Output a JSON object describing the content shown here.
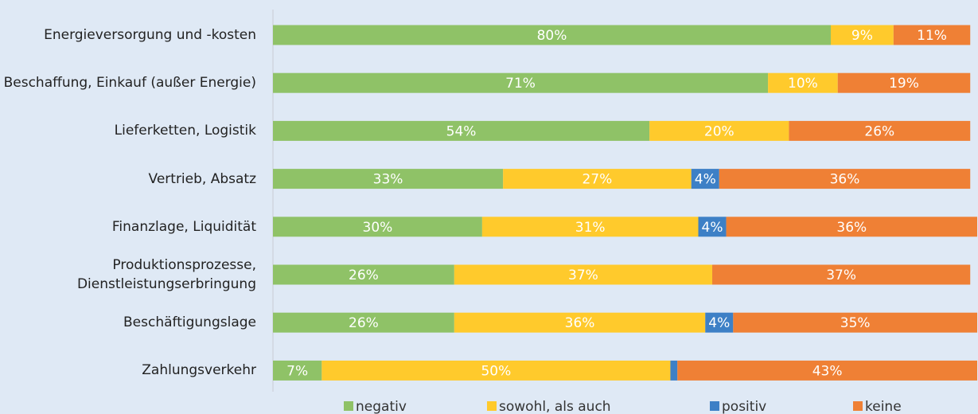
{
  "chart_data": {
    "type": "stacked-bar-horizontal",
    "categories": [
      "Energieversorgung und -kosten",
      "Beschaffung, Einkauf (außer Energie)",
      "Lieferketten, Logistik",
      "Vertrieb, Absatz",
      "Finanzlage, Liquidität",
      "Produktionsprozesse, Dienstleistungserbringung",
      "Beschäftigungslage",
      "Zahlungsverkehr"
    ],
    "series": [
      {
        "name": "negativ",
        "color": "#8fc267",
        "values": [
          80,
          71,
          54,
          33,
          30,
          26,
          26,
          7
        ],
        "value_labels": [
          "80%",
          "71%",
          "54%",
          "33%",
          "30%",
          "26%",
          "26%",
          "7%"
        ]
      },
      {
        "name": "sowohl, als auch",
        "color": "#ffca2c",
        "values": [
          9,
          10,
          20,
          27,
          31,
          37,
          36,
          50
        ],
        "value_labels": [
          "9%",
          "10%",
          "20%",
          "27%",
          "31%",
          "37%",
          "36%",
          "50%"
        ]
      },
      {
        "name": "positiv",
        "color": "#3d80c6",
        "values": [
          null,
          null,
          null,
          4,
          4,
          null,
          4,
          1
        ],
        "value_labels": [
          null,
          null,
          null,
          "4%",
          "4%",
          null,
          "4%",
          null
        ]
      },
      {
        "name": "keine",
        "color": "#ef8035",
        "values": [
          11,
          19,
          26,
          36,
          36,
          37,
          35,
          43
        ],
        "value_labels": [
          "11%",
          "19%",
          "26%",
          "36%",
          "36%",
          "37%",
          "35%",
          "43%"
        ]
      }
    ],
    "xlim": [
      0,
      101
    ]
  }
}
